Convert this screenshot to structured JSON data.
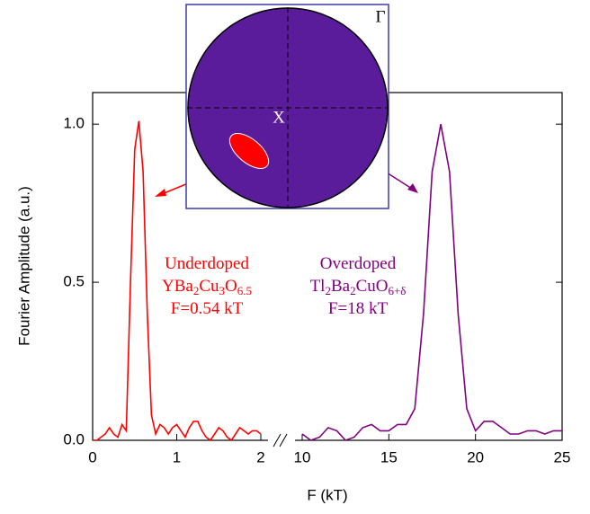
{
  "chart_data": [
    {
      "type": "line",
      "ylabel": "Fourier Amplitude (a.u.)",
      "xlabel": "F (kT)",
      "ylim": [
        0,
        1.1
      ],
      "yticks": [
        {
          "value": 0,
          "label": "0.0"
        },
        {
          "value": 0.5,
          "label": "0.5"
        },
        {
          "value": 1,
          "label": "1.0"
        }
      ],
      "xlim": [
        0,
        2
      ],
      "xticks": [
        0,
        1,
        2
      ],
      "x": [
        0,
        0.05,
        0.1,
        0.15,
        0.2,
        0.25,
        0.3,
        0.35,
        0.4,
        0.45,
        0.5,
        0.55,
        0.6,
        0.65,
        0.7,
        0.75,
        0.8,
        0.85,
        0.9,
        0.95,
        1.0,
        1.05,
        1.1,
        1.15,
        1.2,
        1.25,
        1.3,
        1.35,
        1.4,
        1.45,
        1.5,
        1.55,
        1.6,
        1.65,
        1.7,
        1.75,
        1.8,
        1.85,
        1.9,
        1.95,
        2.0
      ],
      "series": [
        {
          "color": "#ff0000",
          "values": [
            0,
            0,
            0.01,
            0.02,
            0.04,
            0.02,
            0.01,
            0.05,
            0.03,
            0.5,
            0.92,
            1.01,
            0.85,
            0.4,
            0.08,
            0.02,
            0.05,
            0.04,
            0.02,
            0.04,
            0.05,
            0.03,
            0.01,
            0.04,
            0.06,
            0.06,
            0.03,
            0.01,
            0,
            0.02,
            0.04,
            0.03,
            0.01,
            0,
            0.02,
            0.04,
            0.03,
            0.02,
            0.03,
            0.03,
            0.02
          ]
        }
      ],
      "annotation": [
        [
          {
            "text": "Underdoped"
          }
        ],
        [
          {
            "text": "YBa"
          },
          {
            "sub": "2"
          },
          {
            "text": "Cu"
          },
          {
            "sub": "3"
          },
          {
            "text": "O"
          },
          {
            "sub": "6.5"
          }
        ],
        [
          {
            "text": "F=0.54 kT"
          }
        ]
      ]
    },
    {
      "type": "line",
      "xlim": [
        10,
        25
      ],
      "xticks": [
        10,
        15,
        20,
        25
      ],
      "x": [
        10,
        10.5,
        11,
        11.5,
        12,
        12.5,
        13,
        13.5,
        14,
        14.5,
        15,
        15.5,
        16,
        16.5,
        17,
        17.5,
        18,
        18.5,
        19,
        19.5,
        20,
        20.5,
        21,
        21.5,
        22,
        22.5,
        23,
        23.5,
        24,
        24.5,
        25
      ],
      "series": [
        {
          "color": "#800080",
          "values": [
            0.02,
            0,
            0.01,
            0.04,
            0.03,
            0,
            0.01,
            0.04,
            0.05,
            0.03,
            0.03,
            0.05,
            0.05,
            0.1,
            0.4,
            0.85,
            1.0,
            0.85,
            0.4,
            0.1,
            0.03,
            0.06,
            0.06,
            0.04,
            0.02,
            0.02,
            0.03,
            0.03,
            0.02,
            0.03,
            0.03
          ]
        }
      ],
      "annotation": [
        [
          {
            "text": "Overdoped"
          }
        ],
        [
          {
            "text": "Tl"
          },
          {
            "sub": "2"
          },
          {
            "text": "Ba"
          },
          {
            "sub": "2"
          },
          {
            "text": "CuO"
          },
          {
            "sub": "6+δ"
          }
        ],
        [
          {
            "text": "F=18 kT"
          }
        ]
      ]
    }
  ],
  "inset": {
    "labels": [
      "Γ",
      "X"
    ]
  }
}
